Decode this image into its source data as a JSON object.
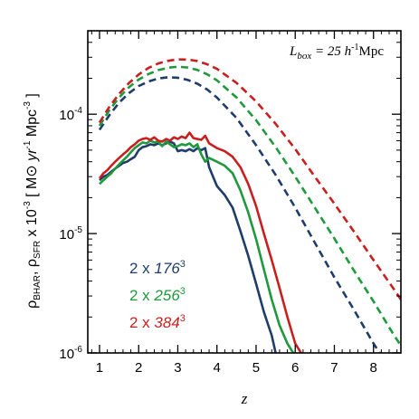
{
  "chart_data": {
    "type": "line",
    "title": "",
    "xlabel": "z",
    "ylabel": "ρBHAR, ρSFR x 10⁻³ [ M⊙ yr⁻¹ Mpc⁻³ ]",
    "ylabel_parts": {
      "rho1": "ρ",
      "sub1": "BHAR",
      "sep": ", ",
      "rho2": "ρ",
      "sub2": "SFR",
      "times": " x 10",
      "exp": "-3",
      "units_open": " [ M",
      "sun": "⊙",
      "yr": " yr",
      "yr_exp": "-1",
      "mpc": " Mpc",
      "mpc_exp": "-3",
      "units_close": " ]"
    },
    "xlim": [
      0.7,
      8.7
    ],
    "ylim": [
      1e-06,
      0.0005
    ],
    "yscale": "log",
    "x_ticks": [
      1,
      2,
      3,
      4,
      5,
      6,
      7,
      8
    ],
    "x_tick_labels": [
      "1",
      "2",
      "3",
      "4",
      "5",
      "6",
      "7",
      "8"
    ],
    "y_ticks": [
      1e-06,
      1e-05,
      0.0001
    ],
    "y_tick_labels": [
      {
        "base": "10",
        "exp": "-6"
      },
      {
        "base": "10",
        "exp": "-5"
      },
      {
        "base": "10",
        "exp": "-4"
      }
    ],
    "annotation": {
      "var": "L",
      "sub": "box",
      "eq": " = 25 ",
      "h": "h",
      "hexp": "-1",
      "unit": "Mpc"
    },
    "legend_placement": "lower-left",
    "legend": [
      {
        "prefix": "2 x ",
        "num": "176",
        "exp": "3",
        "color": "#1f3d6b"
      },
      {
        "prefix": "2 x ",
        "num": "256",
        "exp": "3",
        "color": "#1e9a3c"
      },
      {
        "prefix": "2 x ",
        "num": "384",
        "exp": "3",
        "color": "#c8201e"
      }
    ],
    "series": [
      {
        "group": "SFR",
        "style": "dashed",
        "color": "#1f3d6b",
        "x": [
          1.0,
          1.25,
          1.5,
          1.75,
          2.0,
          2.25,
          2.5,
          2.75,
          3.0,
          3.25,
          3.5,
          3.75,
          4.0,
          4.5,
          5.0,
          5.5,
          6.0,
          6.5,
          7.0,
          7.5,
          8.0,
          8.25,
          8.5
        ],
        "y": [
          7.4e-05,
          9.8e-05,
          0.000125,
          0.00015,
          0.000172,
          0.000188,
          0.000199,
          0.000204,
          0.000202,
          0.000194,
          0.00018,
          0.000161,
          0.000138,
          9.3e-05,
          5.5e-05,
          3.1e-05,
          1.65e-05,
          8.4e-06,
          4.3e-06,
          2.3e-06,
          1.2e-06,
          9e-07,
          7e-07
        ]
      },
      {
        "group": "SFR",
        "style": "dashed",
        "color": "#1e9a3c",
        "x": [
          1.0,
          1.25,
          1.5,
          1.75,
          2.0,
          2.25,
          2.5,
          2.75,
          3.0,
          3.25,
          3.5,
          3.75,
          4.0,
          4.5,
          5.0,
          5.5,
          6.0,
          6.5,
          7.0,
          7.5,
          8.0,
          8.5,
          8.7
        ],
        "y": [
          8e-05,
          0.000108,
          0.000138,
          0.000168,
          0.000195,
          0.000217,
          0.000234,
          0.000245,
          0.00025,
          0.000246,
          0.000235,
          0.000216,
          0.000192,
          0.000138,
          8.9e-05,
          5.3e-05,
          3e-05,
          1.65e-05,
          9.1e-06,
          4.9e-06,
          2.7e-06,
          1.45e-06,
          1.15e-06
        ]
      },
      {
        "group": "SFR",
        "style": "dashed",
        "color": "#c8201e",
        "x": [
          1.0,
          1.25,
          1.5,
          1.75,
          2.0,
          2.25,
          2.5,
          2.75,
          3.0,
          3.25,
          3.5,
          3.75,
          4.0,
          4.5,
          5.0,
          5.5,
          6.0,
          6.5,
          7.0,
          7.5,
          8.0,
          8.5,
          8.7
        ],
        "y": [
          8.5e-05,
          0.000115,
          0.000148,
          0.000182,
          0.000215,
          0.000244,
          0.000266,
          0.00028,
          0.000288,
          0.000287,
          0.000279,
          0.000262,
          0.00024,
          0.000183,
          0.000128,
          8.3e-05,
          5.1e-05,
          3e-05,
          1.78e-05,
          1.04e-05,
          6e-06,
          3.5e-06,
          2.8e-06
        ]
      },
      {
        "group": "BHAR",
        "style": "solid",
        "color": "#1f3d6b",
        "x": [
          1.0,
          1.1,
          1.2,
          1.3,
          1.4,
          1.5,
          1.6,
          1.7,
          1.8,
          1.9,
          2.0,
          2.1,
          2.2,
          2.3,
          2.4,
          2.5,
          2.6,
          2.7,
          2.8,
          2.9,
          3.0,
          3.1,
          3.2,
          3.3,
          3.4,
          3.5,
          3.6,
          3.7,
          3.8,
          4.0,
          4.2,
          4.4,
          4.6,
          4.8,
          5.0,
          5.2,
          5.4,
          5.5
        ],
        "y": [
          2.8e-05,
          3e-05,
          3.1e-05,
          3.3e-05,
          3.5e-05,
          3.7e-05,
          3.9e-05,
          4e-05,
          4.2e-05,
          4.4e-05,
          5e-05,
          5.3e-05,
          5.4e-05,
          5.6e-05,
          5.5e-05,
          5.7e-05,
          5.5e-05,
          5.7e-05,
          5.9e-05,
          5.7e-05,
          4.9e-05,
          5e-05,
          4.9e-05,
          5.1e-05,
          4.9e-05,
          5.2e-05,
          5e-05,
          5.2e-05,
          3.6e-05,
          2.5e-05,
          2.1e-05,
          1.65e-05,
          1.05e-05,
          6.5e-06,
          3.8e-06,
          2.2e-06,
          1.4e-06,
          1e-06
        ]
      },
      {
        "group": "BHAR",
        "style": "solid",
        "color": "#1e9a3c",
        "x": [
          1.0,
          1.1,
          1.2,
          1.3,
          1.4,
          1.5,
          1.6,
          1.7,
          1.8,
          1.9,
          2.0,
          2.1,
          2.2,
          2.3,
          2.4,
          2.5,
          2.6,
          2.7,
          2.8,
          2.9,
          3.0,
          3.1,
          3.2,
          3.3,
          3.4,
          3.5,
          3.6,
          3.7,
          3.8,
          4.0,
          4.2,
          4.4,
          4.6,
          4.8,
          5.0,
          5.2,
          5.4,
          5.6,
          5.8,
          5.95
        ],
        "y": [
          2.6e-05,
          2.8e-05,
          3e-05,
          3.2e-05,
          3.5e-05,
          3.8e-05,
          4.1e-05,
          4.4e-05,
          4.8e-05,
          5.2e-05,
          5.5e-05,
          5.8e-05,
          5.7e-05,
          6e-05,
          5.8e-05,
          5.9e-05,
          5.4e-05,
          5.9e-05,
          5.6e-05,
          5.3e-05,
          5.4e-05,
          5.6e-05,
          5.5e-05,
          5.7e-05,
          5.3e-05,
          5.6e-05,
          4.6e-05,
          4e-05,
          4.3e-05,
          4e-05,
          3.7e-05,
          3.2e-05,
          2.3e-05,
          1.5e-05,
          9e-06,
          5e-06,
          2.8e-06,
          1.7e-06,
          1.2e-06,
          1e-06
        ]
      },
      {
        "group": "BHAR",
        "style": "solid",
        "color": "#c8201e",
        "x": [
          1.0,
          1.1,
          1.2,
          1.3,
          1.4,
          1.5,
          1.6,
          1.7,
          1.8,
          1.9,
          2.0,
          2.1,
          2.2,
          2.3,
          2.4,
          2.5,
          2.6,
          2.7,
          2.8,
          2.9,
          3.0,
          3.1,
          3.2,
          3.3,
          3.4,
          3.5,
          3.6,
          3.7,
          3.8,
          4.0,
          4.2,
          4.4,
          4.6,
          4.8,
          5.0,
          5.2,
          5.4,
          5.6,
          5.8,
          6.0,
          6.15
        ],
        "y": [
          2.9e-05,
          3.2e-05,
          3.4e-05,
          3.7e-05,
          4e-05,
          4.3e-05,
          4.6e-05,
          4.9e-05,
          5.3e-05,
          5.6e-05,
          6e-05,
          6.2e-05,
          6.3e-05,
          6.1e-05,
          6.4e-05,
          6e-05,
          5.9e-05,
          6.2e-05,
          6e-05,
          6.4e-05,
          6.2e-05,
          6.5e-05,
          6.3e-05,
          7e-05,
          6.3e-05,
          6.2e-05,
          6.1e-05,
          6.6e-05,
          5.7e-05,
          5.2e-05,
          4.9e-05,
          4.4e-05,
          3.6e-05,
          2.6e-05,
          1.7e-05,
          1e-05,
          6e-06,
          3.5e-06,
          2e-06,
          1.2e-06,
          1e-06
        ]
      }
    ]
  }
}
